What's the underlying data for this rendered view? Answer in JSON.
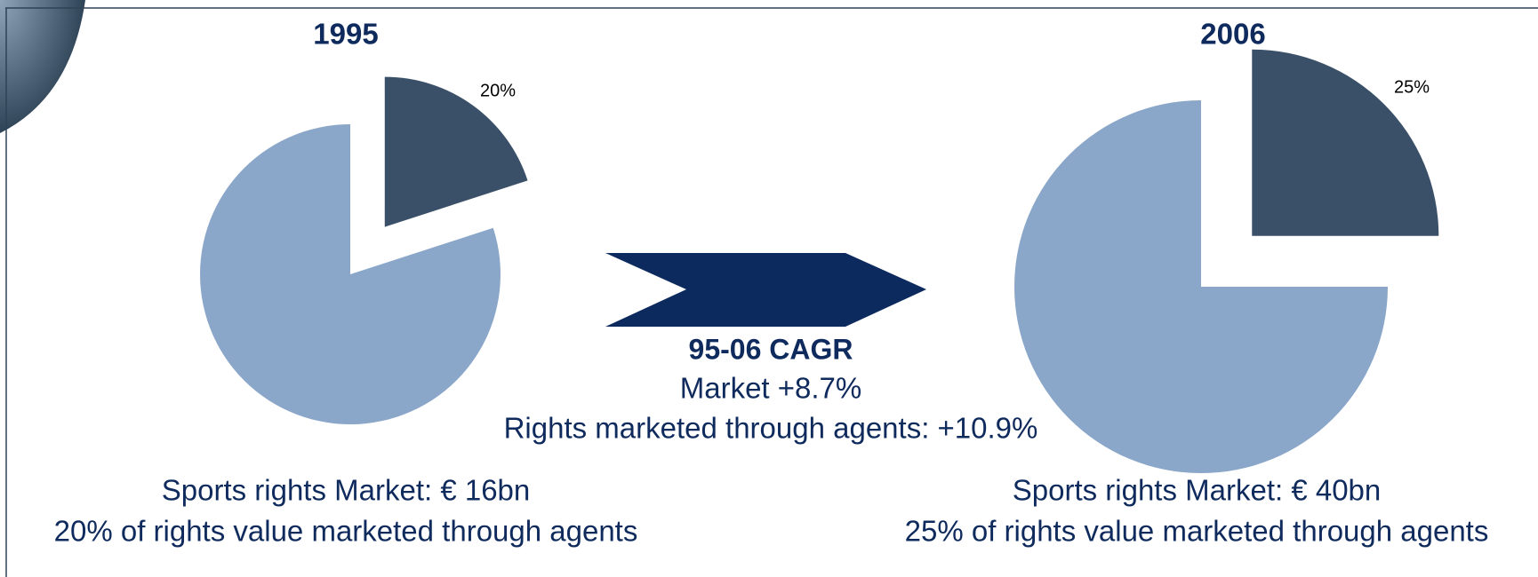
{
  "chart_data": [
    {
      "type": "pie",
      "title": "1995",
      "values": [
        20,
        80
      ],
      "value_labels": [
        "20%",
        null
      ],
      "colors": [
        "#3a5068",
        "#8aa6c9"
      ],
      "notes": [
        "Sports rights Market: € 16bn",
        "20% of rights value marketed through agents"
      ]
    },
    {
      "type": "pie",
      "title": "2006",
      "values": [
        25,
        75
      ],
      "value_labels": [
        "25%",
        null
      ],
      "colors": [
        "#3a5068",
        "#8aa6c9"
      ],
      "notes": [
        "Sports rights Market: € 40bn",
        "25% of rights value marketed through agents"
      ]
    }
  ],
  "cagr": {
    "title": "95-06 CAGR",
    "lines": [
      "Market +8.7%",
      "Rights marketed through agents: +10.9%"
    ]
  }
}
